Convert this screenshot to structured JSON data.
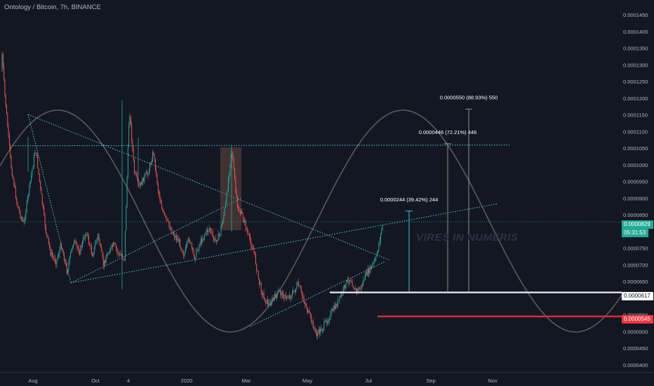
{
  "header": {
    "symbol_title": "Ontology / Bitcoin, 7h, BINANCE"
  },
  "watermark": "VIRES IN NUMERIS",
  "colors": {
    "background": "#131722",
    "bull": "#26a69a",
    "bear": "#ef5350",
    "cyan_drawing": "#4dd0e1",
    "sine_curve": "#5d5a5a",
    "support_white": "#e0e3eb",
    "support_red": "#d32f2f",
    "highlight_box": "#795548"
  },
  "chart_data": {
    "type": "candlestick",
    "title": "Ontology / Bitcoin, 7h, BINANCE",
    "x_axis": {
      "ticks": [
        "Aug",
        "Oct",
        "4",
        "2020",
        "Mar",
        "May",
        "Jul",
        "Sep",
        "Nov"
      ]
    },
    "y_axis": {
      "range": [
        3.85e-05,
        0.0001485
      ],
      "ticks": [
        "0.0000400",
        "0.0000450",
        "0.0000500",
        "0.0000550",
        "0.0000600",
        "0.0000650",
        "0.0000700",
        "0.0000750",
        "0.0000800",
        "0.0000850",
        "0.0000900",
        "0.0000950",
        "0.0001000",
        "0.0001050",
        "0.0001100",
        "0.0001150",
        "0.0001200",
        "0.0001250",
        "0.0001300",
        "0.0001350",
        "0.0001400",
        "0.0001450"
      ],
      "grid": false
    },
    "price_path": [
      [
        "Jun 2019",
        0.000128
      ],
      [
        "Jun 2019",
        0.000138
      ],
      [
        "Jul 2019",
        0.000122
      ],
      [
        "Jul 2019",
        0.0001
      ],
      [
        "Jul 2019",
        8.8e-05
      ],
      [
        "Jul 2019",
        8.2e-05
      ],
      [
        "Jul 2019",
        9.4e-05
      ],
      [
        "Aug 2019",
        0.000105
      ],
      [
        "Aug 2019",
        9.2e-05
      ],
      [
        "Aug 2019",
        8e-05
      ],
      [
        "Aug 2019",
        7.3e-05
      ],
      [
        "Aug 2019",
        7.1e-05
      ],
      [
        "Aug 2019",
        7.6e-05
      ],
      [
        "Sep 2019",
        6.8e-05
      ],
      [
        "Sep 2019",
        7.7e-05
      ],
      [
        "Sep 2019",
        7.4e-05
      ],
      [
        "Sep 2019",
        8e-05
      ],
      [
        "Sep 2019",
        7.3e-05
      ],
      [
        "Oct 2019",
        7.9e-05
      ],
      [
        "Oct 2019",
        7e-05
      ],
      [
        "Oct 2019",
        7.4e-05
      ],
      [
        "Oct 2019",
        7.6e-05
      ],
      [
        "Oct 2019",
        7.3e-05
      ],
      [
        "Oct 2019",
        7.2e-05
      ],
      [
        "Nov 2019",
        0.000117
      ],
      [
        "Nov 2019",
        9.8e-05
      ],
      [
        "Nov 2019",
        9.3e-05
      ],
      [
        "Nov 2019",
        9.6e-05
      ],
      [
        "Nov 2019",
        9.8e-05
      ],
      [
        "Nov 2019",
        0.000104
      ],
      [
        "Dec 2019",
        9.2e-05
      ],
      [
        "Dec 2019",
        8.5e-05
      ],
      [
        "Dec 2019",
        8.2e-05
      ],
      [
        "Dec 2019",
        7.9e-05
      ],
      [
        "Dec 2019",
        7.7e-05
      ],
      [
        "Dec 2019",
        7.3e-05
      ],
      [
        "Jan 2020",
        7.8e-05
      ],
      [
        "Jan 2020",
        7.2e-05
      ],
      [
        "Jan 2020",
        7.6e-05
      ],
      [
        "Jan 2020",
        7.9e-05
      ],
      [
        "Jan 2020",
        8.1e-05
      ],
      [
        "Jan 2020",
        7.7e-05
      ],
      [
        "Feb 2020",
        7.9e-05
      ],
      [
        "Feb 2020",
        8.8e-05
      ],
      [
        "Feb 2020",
        0.000105
      ],
      [
        "Feb 2020",
        8.7e-05
      ],
      [
        "Feb 2020",
        8.4e-05
      ],
      [
        "Mar 2020",
        7.8e-05
      ],
      [
        "Mar 2020",
        7.4e-05
      ],
      [
        "Mar 2020",
        6.5e-05
      ],
      [
        "Mar 2020",
        6e-05
      ],
      [
        "Mar 2020",
        5.8e-05
      ],
      [
        "Mar 2020",
        6e-05
      ],
      [
        "Apr 2020",
        6.2e-05
      ],
      [
        "Apr 2020",
        6e-05
      ],
      [
        "Apr 2020",
        6.1e-05
      ],
      [
        "Apr 2020",
        6.4e-05
      ],
      [
        "Apr 2020",
        5.9e-05
      ],
      [
        "May 2020",
        5.4e-05
      ],
      [
        "May 2020",
        4.9e-05
      ],
      [
        "May 2020",
        5.1e-05
      ],
      [
        "May 2020",
        5.4e-05
      ],
      [
        "May 2020",
        5.7e-05
      ],
      [
        "Jun 2020",
        6e-05
      ],
      [
        "Jun 2020",
        6.4e-05
      ],
      [
        "Jun 2020",
        6.6e-05
      ],
      [
        "Jun 2020",
        6.2e-05
      ],
      [
        "Jun 2020",
        6.3e-05
      ],
      [
        "Jun 2020",
        6.7e-05
      ],
      [
        "Jul 2020",
        6.9e-05
      ],
      [
        "Jul 2020",
        7.2e-05
      ],
      [
        "Jul 2020",
        8.3e-05
      ]
    ],
    "last_price": "0.0000829",
    "countdown": "05:31:53",
    "levels": [
      {
        "label": "0.0000617",
        "value": 6.17e-05,
        "color": "#e0e3eb"
      },
      {
        "label": "0.0000545",
        "value": 5.45e-05,
        "color": "#d32f2f"
      }
    ],
    "projections": [
      {
        "label": "0.0000244 (39.42%) 244",
        "from": 6.17e-05,
        "to": 8.61e-05
      },
      {
        "label": "0.0000446 (72.21%) 446",
        "from": 6.17e-05,
        "to": 0.0001063
      },
      {
        "label": "0.0000550 (88.93%) 550",
        "from": 6.17e-05,
        "to": 0.0001167
      }
    ],
    "horizontal_resistance": 0.0001057
  }
}
